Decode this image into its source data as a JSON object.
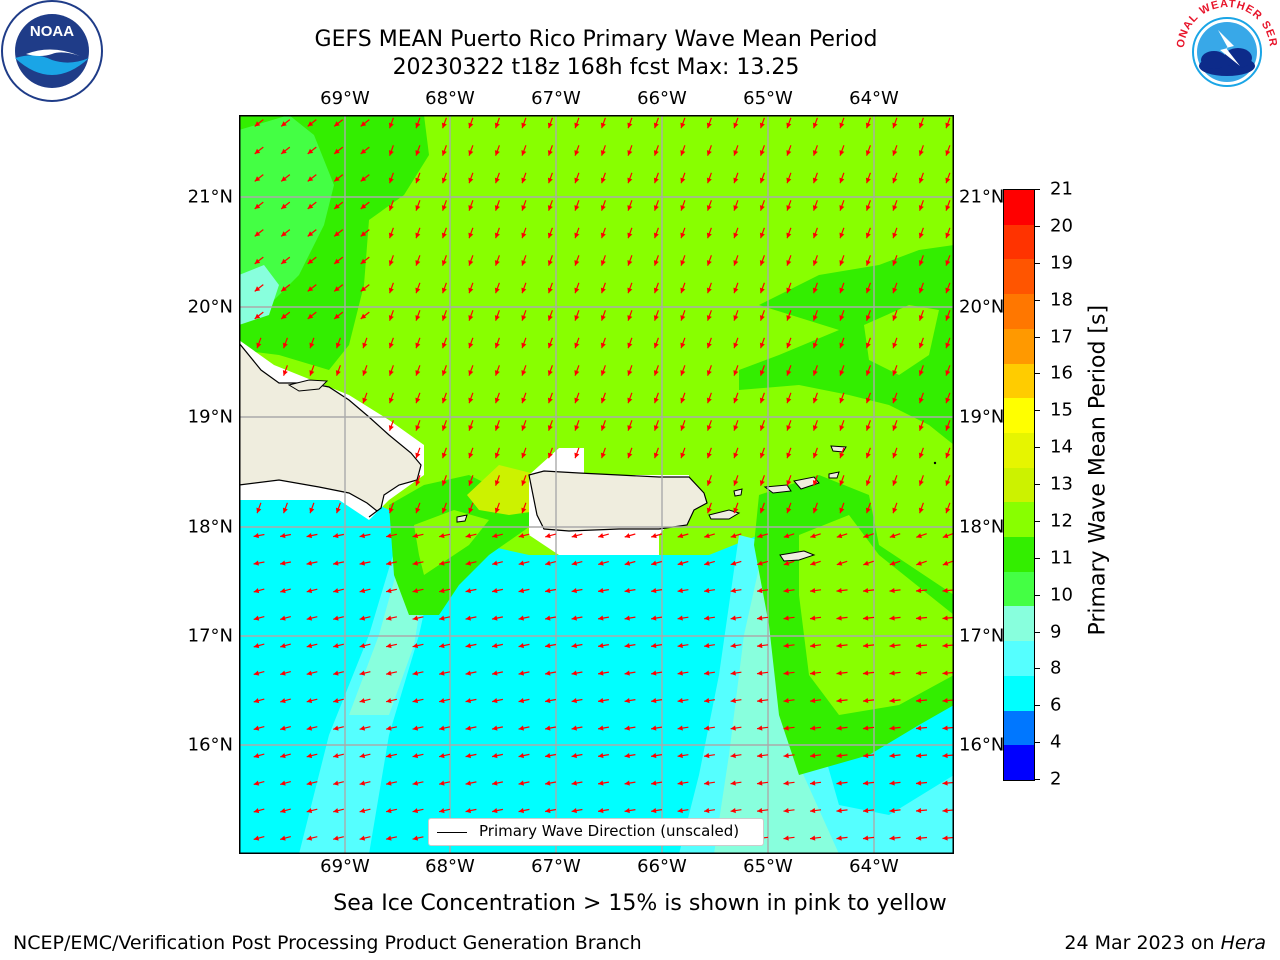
{
  "header": {
    "title_line1": "GEFS MEAN Puerto Rico Primary Wave Mean Period",
    "title_line2": "20230322 t18z 168h fcst   Max: 13.25"
  },
  "logos": {
    "left": {
      "label": "NOAA"
    },
    "right": {
      "ring_text": "NATIONAL WEATHER SERVICE"
    }
  },
  "map": {
    "lon_labels": [
      "69°W",
      "68°W",
      "67°W",
      "66°W",
      "65°W",
      "64°W"
    ],
    "lat_labels": [
      "21°N",
      "20°N",
      "19°N",
      "18°N",
      "17°N",
      "16°N"
    ],
    "legend_text": "Primary Wave Direction (unscaled)"
  },
  "colorbar": {
    "title": "Primary Wave Mean Period [s]",
    "ticks": [
      "21",
      "20",
      "19",
      "18",
      "17",
      "16",
      "15",
      "14",
      "13",
      "12",
      "11",
      "10",
      "9",
      "8",
      "6",
      "4",
      "2"
    ],
    "colors": [
      "#ff0000",
      "#ff3300",
      "#ff5500",
      "#ff7700",
      "#ff9900",
      "#ffcc00",
      "#ffff00",
      "#e6f500",
      "#ccf200",
      "#88ff00",
      "#33ee00",
      "#44ff44",
      "#88ffdd",
      "#55ffff",
      "#00ffff",
      "#0077ff",
      "#0000ff"
    ]
  },
  "colors": {
    "land": "#efedde",
    "coast": "#000000",
    "arrow": "#ff0000",
    "grid": "#aaaaaa",
    "level_13": "#88ff00",
    "level_12": "#33ee00",
    "level_10": "#44ff44",
    "level_9": "#88ffdd",
    "level_8": "#55ffff",
    "level_6": "#00ffff",
    "level_14": "#ccf200"
  },
  "caption": "Sea Ice Concentration > 15% is shown in pink to yellow",
  "footer": {
    "left": "NCEP/EMC/Verification Post Processing Product Generation Branch",
    "right_date": "24 Mar 2023 on ",
    "right_host": "Hera"
  }
}
